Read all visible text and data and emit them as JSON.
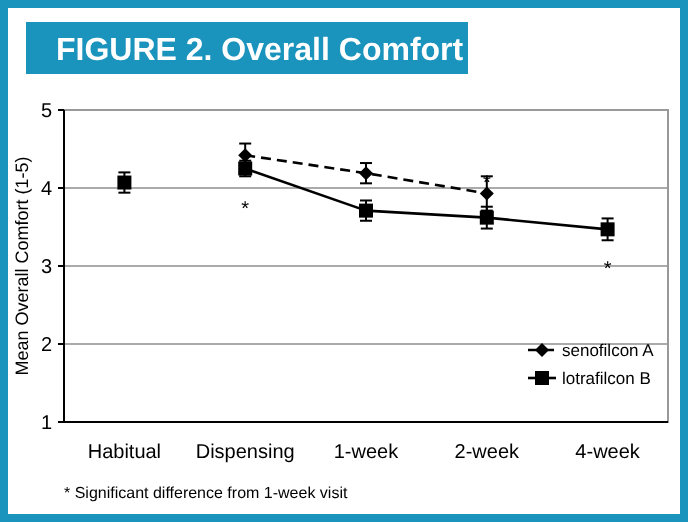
{
  "chart_data": {
    "type": "line",
    "title": "FIGURE 2. Overall Comfort",
    "ylabel": "Mean Overall Comfort (1-5)",
    "categories": [
      "Habitual",
      "Dispensing",
      "1-week",
      "2-week",
      "4-week"
    ],
    "ylim": [
      1,
      5
    ],
    "yticks": [
      1,
      2,
      3,
      4,
      5
    ],
    "grid": "y",
    "legend": "bottom right",
    "series": [
      {
        "name": "senofilcon A",
        "color": "#000000",
        "marker": "diamond",
        "line_style": "dashed",
        "values": [
          null,
          4.42,
          4.19,
          3.93,
          null
        ],
        "errors": [
          null,
          0.15,
          0.13,
          0.22,
          null
        ]
      },
      {
        "name": "lotrafilcon B",
        "color": "#000000",
        "marker": "square",
        "line_style": "solid",
        "values": [
          null,
          4.25,
          3.71,
          3.62,
          3.47
        ],
        "errors": [
          null,
          0.1,
          0.13,
          0.14,
          0.14
        ]
      },
      {
        "type": "scatter",
        "color": "#000000",
        "marker": "square",
        "values": [
          4.07,
          null,
          null,
          null,
          null
        ],
        "errors": [
          0.13,
          null,
          null,
          null,
          null
        ]
      }
    ],
    "annotations": [
      {
        "text": "*",
        "x": "Dispensing",
        "y": 4.25
      },
      {
        "text": "*",
        "x": "2-week",
        "y": 3.93
      },
      {
        "text": "*",
        "x": "4-week",
        "y": 3.47
      },
      "* Significant difference from 1-week visit"
    ]
  }
}
